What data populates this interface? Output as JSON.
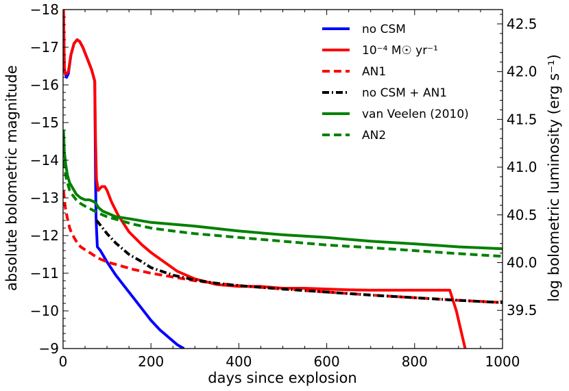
{
  "chart_data": {
    "type": "line",
    "title": "",
    "xlabel": "days since explosion",
    "ylabel": "absolute bolometric magnitude",
    "ylabel_right": "log bolometric luminosity (erg s⁻¹)",
    "xlim": [
      0,
      1000
    ],
    "ylim": [
      -9,
      -18
    ],
    "ylim_right": [
      39.1,
      42.65
    ],
    "y_inverted": true,
    "x_ticks": [
      0,
      200,
      400,
      600,
      800,
      1000
    ],
    "x_tick_labels": [
      "0",
      "200",
      "400",
      "600",
      "800",
      "1000"
    ],
    "y_ticks": [
      -18,
      -17,
      -16,
      -15,
      -14,
      -13,
      -12,
      -11,
      -10,
      -9
    ],
    "y_tick_labels": [
      "−18",
      "−17",
      "−16",
      "−15",
      "−14",
      "−13",
      "−12",
      "−11",
      "−10",
      "−9"
    ],
    "y_right_ticks": [
      39.5,
      40.0,
      40.5,
      41.0,
      41.5,
      42.0,
      42.5
    ],
    "y_right_tick_labels": [
      "39.5",
      "40.0",
      "40.5",
      "41.0",
      "41.5",
      "42.0",
      "42.5"
    ],
    "grid": false,
    "legend_position": "top-right",
    "series": [
      {
        "name": "no CSM",
        "color": "#0000ff",
        "dash": "solid",
        "x": [
          1,
          3,
          5,
          8,
          12,
          18,
          25,
          32,
          38,
          45,
          55,
          65,
          72,
          74,
          75,
          76,
          78,
          85,
          100,
          120,
          140,
          160,
          180,
          200,
          220,
          240,
          260,
          275
        ],
        "y": [
          -18,
          -16.4,
          -16.3,
          -16.2,
          -16.3,
          -16.8,
          -17.1,
          -17.2,
          -17.15,
          -17.0,
          -16.7,
          -16.4,
          -16.1,
          -13.5,
          -12.5,
          -12.2,
          -11.7,
          -11.6,
          -11.3,
          -10.95,
          -10.65,
          -10.35,
          -10.05,
          -9.75,
          -9.5,
          -9.3,
          -9.1,
          -9.0
        ]
      },
      {
        "name": "10⁻⁴ M☉ yr⁻¹",
        "color": "#ff0000",
        "dash": "solid",
        "x": [
          1,
          3,
          5,
          8,
          12,
          18,
          25,
          32,
          38,
          45,
          55,
          65,
          72,
          74,
          76,
          80,
          88,
          95,
          100,
          110,
          125,
          150,
          180,
          200,
          230,
          260,
          300,
          350,
          400,
          450,
          500,
          550,
          600,
          650,
          700,
          750,
          800,
          850,
          880,
          895,
          905,
          915,
          920
        ],
        "y": [
          -18,
          -16.4,
          -16.3,
          -16.3,
          -16.35,
          -16.8,
          -17.1,
          -17.2,
          -17.15,
          -17.0,
          -16.7,
          -16.4,
          -16.1,
          -14.5,
          -13.5,
          -13.2,
          -13.3,
          -13.3,
          -13.2,
          -12.9,
          -12.55,
          -12.1,
          -11.75,
          -11.55,
          -11.3,
          -11.05,
          -10.85,
          -10.7,
          -10.65,
          -10.65,
          -10.6,
          -10.6,
          -10.58,
          -10.56,
          -10.55,
          -10.55,
          -10.55,
          -10.55,
          -10.55,
          -10.0,
          -9.5,
          -9.0,
          -8.8
        ]
      },
      {
        "name": "AN1",
        "color": "#ff0000",
        "dash": "dashed",
        "x": [
          1,
          5,
          10,
          15,
          20,
          30,
          40,
          60,
          80,
          100,
          130,
          160,
          200,
          250,
          300,
          350,
          400,
          500,
          600,
          700,
          800,
          900,
          1000
        ],
        "y": [
          -13.2,
          -12.75,
          -12.45,
          -12.2,
          -12.05,
          -11.85,
          -11.7,
          -11.55,
          -11.4,
          -11.3,
          -11.2,
          -11.1,
          -11.0,
          -10.9,
          -10.8,
          -10.73,
          -10.67,
          -10.58,
          -10.5,
          -10.42,
          -10.35,
          -10.28,
          -10.22
        ]
      },
      {
        "name": "no CSM + AN1",
        "color": "#000000",
        "dash": "dashdot",
        "x": [
          76,
          80,
          90,
          100,
          120,
          150,
          180,
          200,
          250,
          300,
          350,
          400,
          500,
          600,
          700,
          800,
          900,
          1000
        ],
        "y": [
          -12.4,
          -12.35,
          -12.2,
          -12.05,
          -11.8,
          -11.5,
          -11.3,
          -11.15,
          -10.95,
          -10.82,
          -10.73,
          -10.67,
          -10.58,
          -10.5,
          -10.42,
          -10.35,
          -10.28,
          -10.22
        ]
      },
      {
        "name": "van Veelen (2010)",
        "color": "#008000",
        "dash": "solid",
        "x": [
          1,
          3,
          6,
          10,
          15,
          20,
          30,
          40,
          50,
          60,
          70,
          75,
          80,
          90,
          100,
          120,
          150,
          200,
          250,
          300,
          400,
          500,
          600,
          700,
          800,
          900,
          1000
        ],
        "y": [
          -14.8,
          -14.2,
          -13.9,
          -13.6,
          -13.4,
          -13.3,
          -13.1,
          -13.0,
          -12.95,
          -12.95,
          -12.9,
          -12.85,
          -12.75,
          -12.65,
          -12.6,
          -12.5,
          -12.45,
          -12.35,
          -12.3,
          -12.25,
          -12.12,
          -12.02,
          -11.95,
          -11.85,
          -11.78,
          -11.7,
          -11.65
        ]
      },
      {
        "name": "AN2",
        "color": "#008000",
        "dash": "dashed",
        "x": [
          1,
          3,
          6,
          10,
          15,
          20,
          30,
          40,
          50,
          60,
          80,
          100,
          130,
          160,
          200,
          250,
          300,
          400,
          500,
          600,
          700,
          800,
          900,
          1000
        ],
        "y": [
          -14.3,
          -13.85,
          -13.6,
          -13.4,
          -13.2,
          -13.1,
          -12.95,
          -12.85,
          -12.78,
          -12.72,
          -12.6,
          -12.5,
          -12.4,
          -12.3,
          -12.2,
          -12.12,
          -12.05,
          -11.95,
          -11.85,
          -11.75,
          -11.68,
          -11.6,
          -11.52,
          -11.45
        ]
      }
    ]
  }
}
